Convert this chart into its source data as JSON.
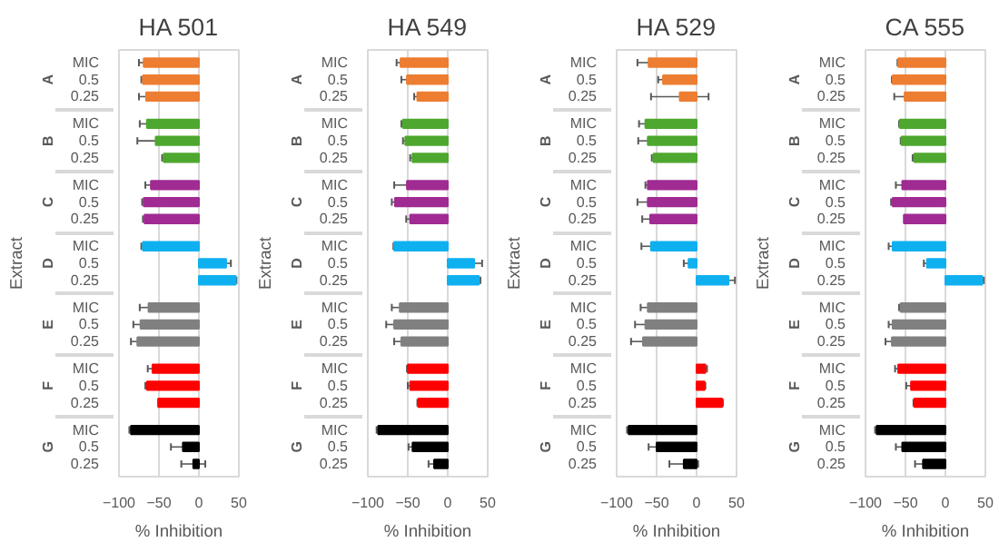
{
  "chart_data": [
    {
      "type": "bar",
      "orientation": "horizontal",
      "title": "HA 501",
      "xlabel": "% Inhibition",
      "ylabel": "Extract",
      "annotations": [
        "A",
        "B",
        "C",
        "D",
        "E",
        "F",
        "G"
      ],
      "categories": [
        "MIC",
        "0.5",
        "0.25",
        "MIC",
        "0.5",
        "0.25",
        "MIC",
        "0.5",
        "0.25",
        "MIC",
        "0.5",
        "0.25",
        "MIC",
        "0.5",
        "0.25",
        "MIC",
        "0.5",
        "0.25",
        "MIC",
        "0.5",
        "0.25"
      ],
      "values": [
        -69,
        -70,
        -66,
        -65,
        -54,
        -44,
        -60,
        -69,
        -68,
        -70,
        34,
        46,
        -63,
        -73,
        -77,
        -58,
        -65,
        -51,
        -85,
        -20,
        -7
      ],
      "errors": [
        6,
        2,
        9,
        9,
        23,
        2,
        7,
        2,
        2,
        2,
        6,
        1,
        11,
        9,
        8,
        6,
        2,
        null,
        2,
        15,
        15
      ],
      "colors": [
        "#ed7d31",
        "#ed7d31",
        "#ed7d31",
        "#4ea72e",
        "#4ea72e",
        "#4ea72e",
        "#a02b93",
        "#a02b93",
        "#a02b93",
        "#0fb0f0",
        "#0fb0f0",
        "#0fb0f0",
        "#808080",
        "#808080",
        "#808080",
        "#ff0000",
        "#ff0000",
        "#ff0000",
        "#000000",
        "#000000",
        "#000000"
      ],
      "xlim": [
        -100,
        50
      ],
      "xticks": [
        -100,
        -50,
        0,
        50
      ],
      "grid": "x"
    },
    {
      "type": "bar",
      "orientation": "horizontal",
      "title": "HA 549",
      "xlabel": "% Inhibition",
      "ylabel": "Extract",
      "annotations": [
        "A",
        "B",
        "C",
        "D",
        "E",
        "F",
        "G"
      ],
      "categories": [
        "MIC",
        "0.5",
        "0.25",
        "MIC",
        "0.5",
        "0.25",
        "MIC",
        "0.5",
        "0.25",
        "MIC",
        "0.5",
        "0.25",
        "MIC",
        "0.5",
        "0.25",
        "MIC",
        "0.5",
        "0.25",
        "MIC",
        "0.5",
        "0.25"
      ],
      "values": [
        -59,
        -51,
        -38,
        -56,
        -53,
        -44,
        -51,
        -66,
        -47,
        -67,
        33,
        39,
        -60,
        -67,
        -58,
        -50,
        -47,
        -37,
        -87,
        -44,
        -17
      ],
      "errors": [
        5,
        7,
        4,
        2,
        3,
        3,
        16,
        4,
        5,
        1,
        10,
        2,
        10,
        10,
        9,
        1,
        3,
        1,
        2,
        5,
        7
      ],
      "colors": [
        "#ed7d31",
        "#ed7d31",
        "#ed7d31",
        "#4ea72e",
        "#4ea72e",
        "#4ea72e",
        "#a02b93",
        "#a02b93",
        "#a02b93",
        "#0fb0f0",
        "#0fb0f0",
        "#0fb0f0",
        "#808080",
        "#808080",
        "#808080",
        "#ff0000",
        "#ff0000",
        "#ff0000",
        "#000000",
        "#000000",
        "#000000"
      ],
      "xlim": [
        -100,
        50
      ],
      "xticks": [
        -100,
        -50,
        0,
        50
      ],
      "grid": "x"
    },
    {
      "type": "bar",
      "orientation": "horizontal",
      "title": "HA 529",
      "xlabel": "% Inhibition",
      "ylabel": "Extract",
      "annotations": [
        "A",
        "B",
        "C",
        "D",
        "E",
        "F",
        "G"
      ],
      "categories": [
        "MIC",
        "0.5",
        "0.25",
        "MIC",
        "0.5",
        "0.25",
        "MIC",
        "0.5",
        "0.25",
        "MIC",
        "0.5",
        "0.25",
        "MIC",
        "0.5",
        "0.25",
        "MIC",
        "0.5",
        "0.25",
        "MIC",
        "0.5",
        "0.25"
      ],
      "values": [
        -60,
        -42,
        -21,
        -64,
        -61,
        -54,
        -61,
        -61,
        -58,
        -57,
        -10,
        40,
        -61,
        -64,
        -67,
        11,
        10,
        32,
        -85,
        -50,
        -16
      ],
      "errors": [
        14,
        6,
        36,
        8,
        12,
        2,
        3,
        13,
        10,
        12,
        6,
        8,
        9,
        13,
        15,
        2,
        1,
        1,
        2,
        10,
        18
      ],
      "colors": [
        "#ed7d31",
        "#ed7d31",
        "#ed7d31",
        "#4ea72e",
        "#4ea72e",
        "#4ea72e",
        "#a02b93",
        "#a02b93",
        "#a02b93",
        "#0fb0f0",
        "#0fb0f0",
        "#0fb0f0",
        "#808080",
        "#808080",
        "#808080",
        "#ff0000",
        "#ff0000",
        "#ff0000",
        "#000000",
        "#000000",
        "#000000"
      ],
      "xlim": [
        -100,
        50
      ],
      "xticks": [
        -100,
        -50,
        0,
        50
      ],
      "grid": "x"
    },
    {
      "type": "bar",
      "orientation": "horizontal",
      "title": "CA 555",
      "xlabel": "% Inhibition",
      "ylabel": "Extract",
      "annotations": [
        "A",
        "B",
        "C",
        "D",
        "E",
        "F",
        "G"
      ],
      "categories": [
        "MIC",
        "0.5",
        "0.25",
        "MIC",
        "0.5",
        "0.25",
        "MIC",
        "0.5",
        "0.25",
        "MIC",
        "0.5",
        "0.25",
        "MIC",
        "0.5",
        "0.25",
        "MIC",
        "0.5",
        "0.25",
        "MIC",
        "0.5",
        "0.25"
      ],
      "values": [
        -59,
        -66,
        -51,
        -57,
        -55,
        -39,
        -54,
        -66,
        -52,
        -66,
        -23,
        46,
        -56,
        -66,
        -67,
        -59,
        -43,
        -39,
        -86,
        -54,
        -28
      ],
      "errors": [
        1,
        1,
        13,
        1,
        1,
        2,
        8,
        2,
        null,
        5,
        4,
        2,
        2,
        5,
        8,
        4,
        6,
        1,
        2,
        8,
        10
      ],
      "colors": [
        "#ed7d31",
        "#ed7d31",
        "#ed7d31",
        "#4ea72e",
        "#4ea72e",
        "#4ea72e",
        "#a02b93",
        "#a02b93",
        "#a02b93",
        "#0fb0f0",
        "#0fb0f0",
        "#0fb0f0",
        "#808080",
        "#808080",
        "#808080",
        "#ff0000",
        "#ff0000",
        "#ff0000",
        "#000000",
        "#000000",
        "#000000"
      ],
      "xlim": [
        -100,
        50
      ],
      "xticks": [
        -100,
        -50,
        0,
        50
      ],
      "grid": "x"
    }
  ]
}
